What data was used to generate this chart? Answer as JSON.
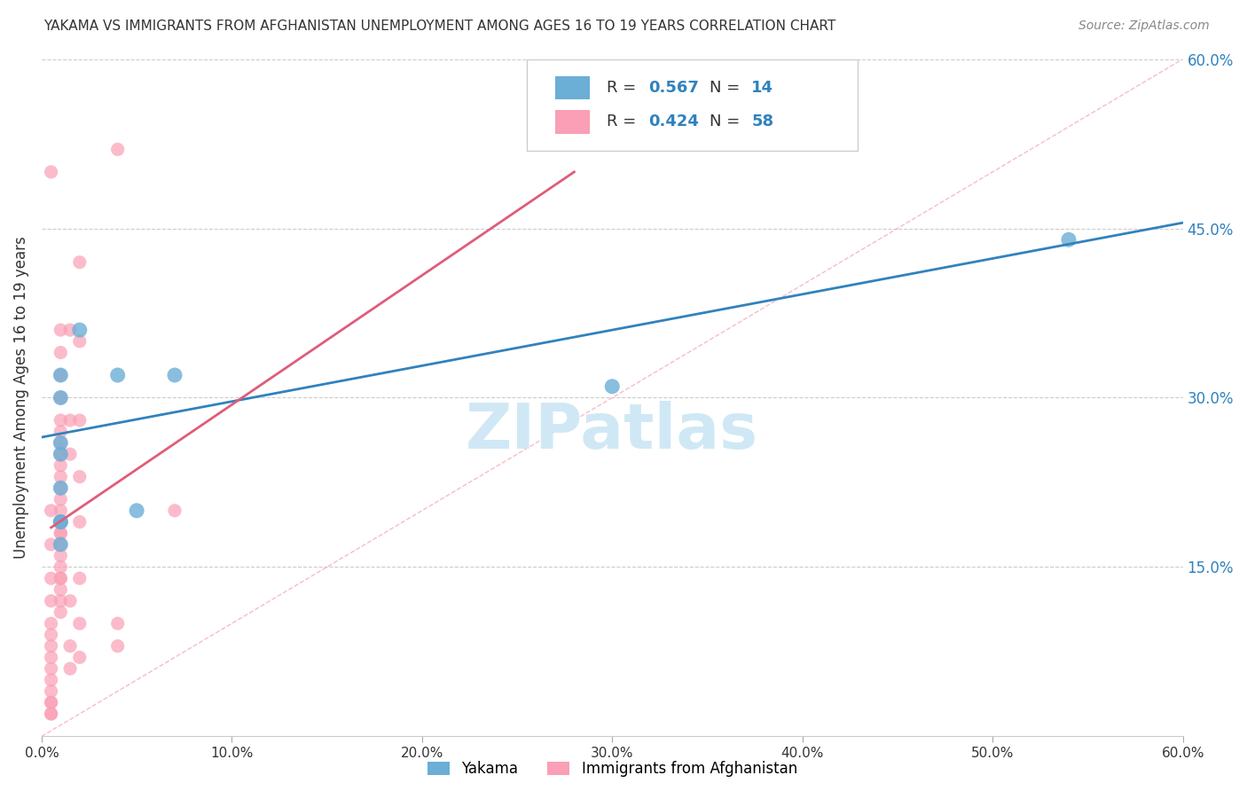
{
  "title": "YAKAMA VS IMMIGRANTS FROM AFGHANISTAN UNEMPLOYMENT AMONG AGES 16 TO 19 YEARS CORRELATION CHART",
  "source": "Source: ZipAtlas.com",
  "ylabel": "Unemployment Among Ages 16 to 19 years",
  "xlim": [
    0,
    0.6
  ],
  "ylim": [
    0,
    0.6
  ],
  "xticks": [
    0.0,
    0.1,
    0.2,
    0.3,
    0.4,
    0.5,
    0.6
  ],
  "ytick_labels": [
    "15.0%",
    "30.0%",
    "45.0%",
    "60.0%"
  ],
  "ytick_values": [
    0.15,
    0.3,
    0.45,
    0.6
  ],
  "xtick_labels": [
    "0.0%",
    "10.0%",
    "20.0%",
    "30.0%",
    "40.0%",
    "50.0%",
    "60.0%"
  ],
  "legend_r1": "R = 0.567",
  "legend_n1": "N = 14",
  "legend_r2": "R = 0.424",
  "legend_n2": "N = 58",
  "blue_color": "#6baed6",
  "pink_color": "#fa9fb5",
  "blue_line_color": "#3182bd",
  "pink_line_color": "#e05c7a",
  "watermark": "ZIPatlas",
  "watermark_color": "#d0e8f5",
  "background_color": "#ffffff",
  "grid_color": "#cccccc",
  "yakama_points": [
    [
      0.01,
      0.26
    ],
    [
      0.01,
      0.32
    ],
    [
      0.01,
      0.25
    ],
    [
      0.01,
      0.3
    ],
    [
      0.01,
      0.22
    ],
    [
      0.01,
      0.19
    ],
    [
      0.01,
      0.19
    ],
    [
      0.01,
      0.17
    ],
    [
      0.02,
      0.36
    ],
    [
      0.04,
      0.32
    ],
    [
      0.05,
      0.2
    ],
    [
      0.07,
      0.32
    ],
    [
      0.3,
      0.31
    ],
    [
      0.54,
      0.44
    ]
  ],
  "afghan_points": [
    [
      0.005,
      0.5
    ],
    [
      0.005,
      0.2
    ],
    [
      0.005,
      0.17
    ],
    [
      0.005,
      0.14
    ],
    [
      0.005,
      0.12
    ],
    [
      0.005,
      0.1
    ],
    [
      0.005,
      0.09
    ],
    [
      0.005,
      0.08
    ],
    [
      0.005,
      0.07
    ],
    [
      0.005,
      0.06
    ],
    [
      0.005,
      0.05
    ],
    [
      0.005,
      0.04
    ],
    [
      0.005,
      0.03
    ],
    [
      0.005,
      0.03
    ],
    [
      0.005,
      0.02
    ],
    [
      0.005,
      0.02
    ],
    [
      0.01,
      0.36
    ],
    [
      0.01,
      0.34
    ],
    [
      0.01,
      0.32
    ],
    [
      0.01,
      0.3
    ],
    [
      0.01,
      0.28
    ],
    [
      0.01,
      0.27
    ],
    [
      0.01,
      0.26
    ],
    [
      0.01,
      0.25
    ],
    [
      0.01,
      0.24
    ],
    [
      0.01,
      0.23
    ],
    [
      0.01,
      0.22
    ],
    [
      0.01,
      0.21
    ],
    [
      0.01,
      0.2
    ],
    [
      0.01,
      0.19
    ],
    [
      0.01,
      0.18
    ],
    [
      0.01,
      0.18
    ],
    [
      0.01,
      0.17
    ],
    [
      0.01,
      0.16
    ],
    [
      0.01,
      0.15
    ],
    [
      0.01,
      0.14
    ],
    [
      0.01,
      0.14
    ],
    [
      0.01,
      0.13
    ],
    [
      0.01,
      0.12
    ],
    [
      0.01,
      0.11
    ],
    [
      0.015,
      0.36
    ],
    [
      0.015,
      0.28
    ],
    [
      0.015,
      0.25
    ],
    [
      0.015,
      0.12
    ],
    [
      0.015,
      0.08
    ],
    [
      0.015,
      0.06
    ],
    [
      0.02,
      0.42
    ],
    [
      0.02,
      0.35
    ],
    [
      0.02,
      0.28
    ],
    [
      0.02,
      0.23
    ],
    [
      0.02,
      0.19
    ],
    [
      0.02,
      0.14
    ],
    [
      0.02,
      0.1
    ],
    [
      0.02,
      0.07
    ],
    [
      0.04,
      0.52
    ],
    [
      0.04,
      0.1
    ],
    [
      0.04,
      0.08
    ],
    [
      0.07,
      0.2
    ]
  ],
  "blue_trend_x": [
    0.0,
    0.6
  ],
  "blue_trend_y": [
    0.265,
    0.455
  ],
  "pink_trend_x": [
    0.005,
    0.28
  ],
  "pink_trend_y": [
    0.185,
    0.5
  ],
  "diag_line_x": [
    0.0,
    0.6
  ],
  "diag_line_y": [
    0.0,
    0.6
  ]
}
